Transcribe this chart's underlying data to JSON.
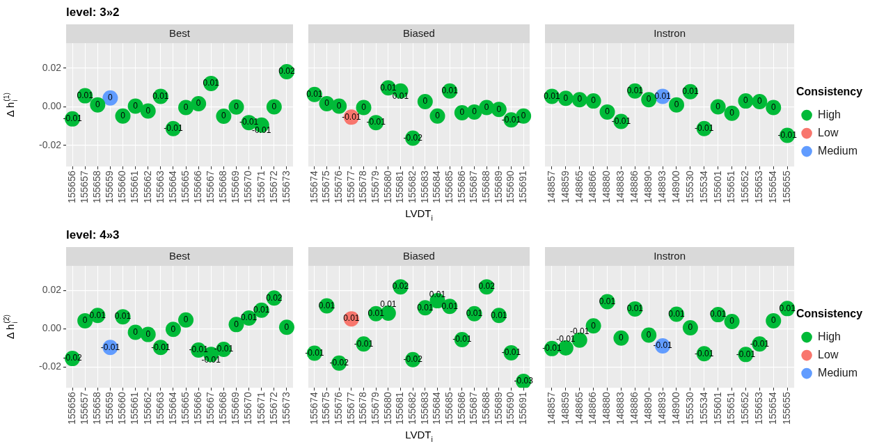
{
  "chart_data": [
    {
      "type": "scatter",
      "title": "Best",
      "annotations": [
        "level: 3»2"
      ],
      "ylabel": "Δ h$_{i}$$^{(1)}$",
      "categories": [
        "155656",
        "155657",
        "155658",
        "155659",
        "155660",
        "155661",
        "155662",
        "155663",
        "155664",
        "155665",
        "155666",
        "155667",
        "155668",
        "155669",
        "155670",
        "155671",
        "155672",
        "155673"
      ],
      "series": [
        {
          "color": "#00ba38",
          "values": [
            -0.0063,
            0.0057,
            0.001,
            null,
            -0.0048,
            0.0003,
            -0.0022,
            0.0054,
            -0.0113,
            -0.0004,
            0.0016,
            0.0121,
            -0.0049,
            -0.0001,
            -0.0082,
            -0.0095,
            0,
            0.0182
          ],
          "value_labels": [
            "-0.01",
            "0.01",
            "0",
            null,
            "0",
            "0",
            "0",
            "0.01",
            "-0.01",
            "0",
            "0",
            "0.01",
            "0",
            "0",
            "-0.01",
            "-0.01",
            "0",
            "0.02"
          ]
        },
        {
          "color": "#619cff",
          "values": [
            null,
            null,
            null,
            0.0046,
            null,
            null,
            null,
            null,
            null,
            null,
            null,
            null,
            null,
            null,
            null,
            null,
            null,
            null
          ],
          "value_labels": [
            null,
            null,
            null,
            "0",
            null,
            null,
            null,
            null,
            null,
            null,
            null,
            null,
            null,
            null,
            null,
            null,
            null,
            null
          ]
        }
      ],
      "ylim": [
        -0.031,
        0.033
      ],
      "yticks": [
        -0.02,
        {
          "value": 0,
          "label": "0.00"
        },
        0.02
      ],
      "grid": true,
      "marker": "circle"
    },
    {
      "type": "scatter",
      "title": "Biased",
      "xlabel": "LVDT$_{i}$",
      "tick_labels": "x",
      "categories": [
        "155674",
        "155675",
        "155676",
        "155677",
        "155678",
        "155679",
        "155680",
        "155681",
        "155682",
        "155683",
        "155684",
        "155685",
        "155686",
        "155687",
        "155688",
        "155689",
        "155690",
        "155691"
      ],
      "series": [
        {
          "color": "#00ba38",
          "values": [
            0.0064,
            0.0016,
            0.0003,
            null,
            -0.0004,
            -0.0082,
            0.0098,
            0.0082,
            -0.0163,
            0.0027,
            -0.0048,
            0.0082,
            -0.0031,
            -0.0027,
            -0.0004,
            -0.0014,
            -0.0068,
            -0.0048
          ],
          "value_labels": [
            "0.01",
            "0",
            "0",
            null,
            "0",
            "-0.01",
            "0.01",
            "0.01",
            "-0.02",
            "0",
            "0",
            "0.01",
            "0",
            "0",
            "0",
            "0",
            "-0.01",
            "0"
          ]
        },
        {
          "color": "#f8766d",
          "values": [
            null,
            null,
            null,
            -0.0054,
            null,
            null,
            null,
            null,
            null,
            null,
            null,
            null,
            null,
            null,
            null,
            null,
            null,
            null
          ],
          "value_labels": [
            null,
            null,
            null,
            "-0.01",
            null,
            null,
            null,
            null,
            null,
            null,
            null,
            null,
            null,
            null,
            null,
            null,
            null,
            null
          ]
        }
      ],
      "ylim": [
        -0.031,
        0.033
      ],
      "yticks": [
        -0.02,
        0,
        0.02
      ],
      "grid": true,
      "marker": "circle"
    },
    {
      "type": "scatter",
      "title": "Instron",
      "tick_labels": "x",
      "legend": "right",
      "legend_title": "Consistency",
      "categories": [
        "148857",
        "148859",
        "148865",
        "148866",
        "148880",
        "148883",
        "148886",
        "148890",
        "148893",
        "148900",
        "155530",
        "155534",
        "155601",
        "155651",
        "155652",
        "155653",
        "155654",
        "155655"
      ],
      "series": [
        {
          "name": "High",
          "color": "#00ba38",
          "values": [
            0.0054,
            0.0044,
            0.0037,
            0.003,
            -0.0027,
            -0.0076,
            0.0082,
            0.0037,
            null,
            0.001,
            0.0078,
            -0.0113,
            0,
            -0.0034,
            0.003,
            0.0027,
            -0.0004,
            -0.0148
          ],
          "value_labels": [
            "0.01",
            "0",
            "0",
            "0",
            "0",
            "-0.01",
            "0.01",
            "0",
            null,
            "0",
            "0.01",
            "-0.01",
            "0",
            "0",
            "0",
            "0",
            "0",
            "-0.01"
          ]
        },
        {
          "name": "Low",
          "color": "#f8766d",
          "values": [
            null,
            null,
            null,
            null,
            null,
            null,
            null,
            null,
            null,
            null,
            null,
            null,
            null,
            null,
            null,
            null,
            null,
            null
          ],
          "value_labels": [
            null,
            null,
            null,
            null,
            null,
            null,
            null,
            null,
            null,
            null,
            null,
            null,
            null,
            null,
            null,
            null,
            null,
            null
          ]
        },
        {
          "name": "Medium",
          "color": "#619cff",
          "values": [
            null,
            null,
            null,
            null,
            null,
            null,
            null,
            null,
            0.0054,
            null,
            null,
            null,
            null,
            null,
            null,
            null,
            null,
            null
          ],
          "value_labels": [
            null,
            null,
            null,
            null,
            null,
            null,
            null,
            null,
            "0.01",
            null,
            null,
            null,
            null,
            null,
            null,
            null,
            null,
            null
          ]
        }
      ],
      "ylim": [
        -0.031,
        0.033
      ],
      "yticks": [
        -0.02,
        0,
        0.02
      ],
      "grid": true,
      "marker": "circle"
    },
    {
      "type": "scatter",
      "title": "Best",
      "annotations": [
        "level: 4»3"
      ],
      "ylabel": "Δ h$_{i}$$^{(2)}$",
      "categories": [
        "155656",
        "155657",
        "155658",
        "155659",
        "155660",
        "155661",
        "155662",
        "155663",
        "155664",
        "155665",
        "155666",
        "155667",
        "155668",
        "155669",
        "155670",
        "155671",
        "155672",
        "155673"
      ],
      "series": [
        {
          "color": "#00ba38",
          "values": [
            -0.0156,
            0.0042,
            0.007,
            null,
            0.0063,
            -0.0019,
            -0.003,
            -0.0098,
            -0.0003,
            0.0046,
            -0.0112,
            -0.0135,
            -0.0108,
            0.0022,
            0.0056,
            0.0097,
            0.0161,
            0.0008
          ],
          "value_labels": [
            "-0.02",
            "0",
            "0.01",
            null,
            "0.01",
            "0",
            "0",
            "-0.01",
            "0",
            "0",
            "-0.01",
            "-0.01",
            "-0.01",
            "0",
            "0.01",
            "0.01",
            "0.02",
            "0"
          ]
        },
        {
          "color": "#619cff",
          "values": [
            null,
            null,
            null,
            -0.0098,
            null,
            null,
            null,
            null,
            null,
            null,
            null,
            null,
            null,
            null,
            null,
            null,
            null,
            null
          ],
          "value_labels": [
            null,
            null,
            null,
            "-0.01",
            null,
            null,
            null,
            null,
            null,
            null,
            null,
            null,
            null,
            null,
            null,
            null,
            null,
            null
          ]
        }
      ],
      "ylim": [
        -0.031,
        0.033
      ],
      "yticks": [
        -0.02,
        {
          "value": 0,
          "label": "0.00"
        },
        0.02
      ],
      "grid": true,
      "marker": "circle"
    },
    {
      "type": "scatter",
      "title": "Biased",
      "xlabel": "LVDT$_{i}$",
      "tick_labels": "x",
      "categories": [
        "155674",
        "155675",
        "155676",
        "155677",
        "155678",
        "155679",
        "155680",
        "155681",
        "155682",
        "155683",
        "155684",
        "155685",
        "155686",
        "155687",
        "155688",
        "155689",
        "155690",
        "155691"
      ],
      "series": [
        {
          "color": "#00ba38",
          "values": [
            -0.0128,
            0.012,
            -0.018,
            null,
            -0.008,
            0.0079,
            0.0082,
            0.022,
            -0.0162,
            0.011,
            0.0147,
            0.0117,
            -0.0057,
            0.0079,
            0.022,
            0.007,
            -0.0126,
            -0.0276
          ],
          "value_labels": [
            "-0.01",
            "0.01",
            "-0.02",
            null,
            "-0.01",
            "0.01",
            "0.01",
            "0.02",
            "-0.02",
            "0.01",
            "0.01",
            "0.01",
            "-0.01",
            "0.01",
            "0.02",
            "0.01",
            "-0.01",
            "-0.03"
          ]
        },
        {
          "color": "#f8766d",
          "values": [
            null,
            null,
            null,
            0.0052,
            null,
            null,
            null,
            null,
            null,
            null,
            null,
            null,
            null,
            null,
            null,
            null,
            null,
            null
          ],
          "value_labels": [
            null,
            null,
            null,
            "0.01",
            null,
            null,
            null,
            null,
            null,
            null,
            null,
            null,
            null,
            null,
            null,
            null,
            null,
            null
          ]
        }
      ],
      "ylim": [
        -0.031,
        0.033
      ],
      "yticks": [
        -0.02,
        0,
        0.02
      ],
      "grid": true,
      "marker": "circle"
    },
    {
      "type": "scatter",
      "title": "Instron",
      "tick_labels": "x",
      "legend": "right",
      "legend_title": "Consistency",
      "categories": [
        "148857",
        "148859",
        "148865",
        "148866",
        "148880",
        "148883",
        "148886",
        "148890",
        "148893",
        "148900",
        "155530",
        "155534",
        "155601",
        "155651",
        "155652",
        "155653",
        "155654",
        "155655"
      ],
      "series": [
        {
          "name": "High",
          "color": "#00ba38",
          "values": [
            -0.0104,
            -0.0101,
            -0.006,
            0.0015,
            0.0142,
            -0.0049,
            0.0104,
            -0.0033,
            null,
            0.0076,
            0.0005,
            -0.0131,
            0.0074,
            0.0038,
            -0.0135,
            -0.008,
            0.0042,
            0.0106
          ],
          "value_labels": [
            "-0.01",
            "-0.01",
            "-0.01",
            "0",
            "0.01",
            "0",
            "0.01",
            "0",
            null,
            "0.01",
            "0",
            "-0.01",
            "0.01",
            "0",
            "-0.01",
            "-0.01",
            "0",
            "0.01"
          ]
        },
        {
          "name": "Low",
          "color": "#f8766d",
          "values": [
            null,
            null,
            null,
            null,
            null,
            null,
            null,
            null,
            null,
            null,
            null,
            null,
            null,
            null,
            null,
            null,
            null,
            null
          ],
          "value_labels": [
            null,
            null,
            null,
            null,
            null,
            null,
            null,
            null,
            null,
            null,
            null,
            null,
            null,
            null,
            null,
            null,
            null,
            null
          ]
        },
        {
          "name": "Medium",
          "color": "#619cff",
          "values": [
            null,
            null,
            null,
            null,
            null,
            null,
            null,
            null,
            -0.009,
            null,
            null,
            null,
            null,
            null,
            null,
            null,
            null,
            null
          ],
          "value_labels": [
            null,
            null,
            null,
            null,
            null,
            null,
            null,
            null,
            "-0.01",
            null,
            null,
            null,
            null,
            null,
            null,
            null,
            null,
            null
          ]
        }
      ],
      "ylim": [
        -0.031,
        0.033
      ],
      "yticks": [
        -0.02,
        0,
        0.02
      ],
      "grid": true,
      "marker": "circle"
    }
  ]
}
